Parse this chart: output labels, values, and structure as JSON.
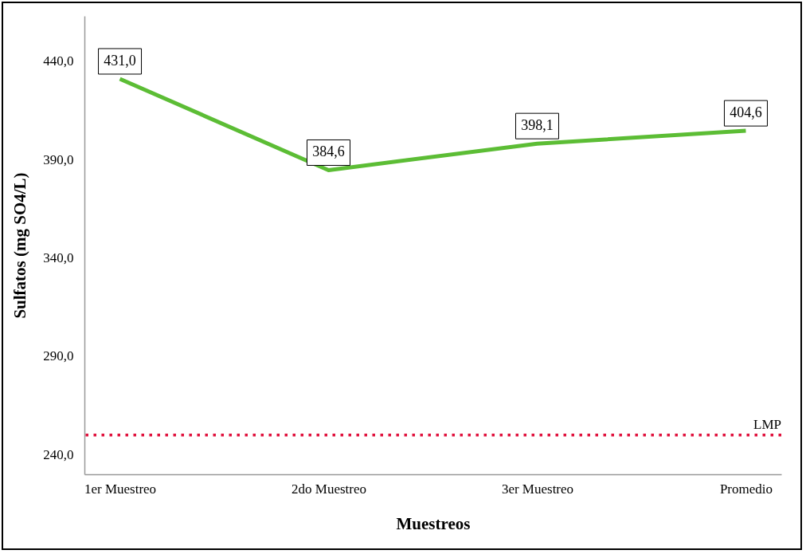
{
  "chart_data": {
    "type": "line",
    "xlabel": "Muestreos",
    "ylabel": "Sulfatos (mg SO4/L)",
    "categories": [
      "1er Muestreo",
      "2do Muestreo",
      "3er Muestreo",
      "Promedio"
    ],
    "values": [
      431.0,
      384.6,
      398.1,
      404.6
    ],
    "value_labels": [
      "431,0",
      "384,6",
      "398,1",
      "404,6"
    ],
    "color": "#5cbd35",
    "ylim": [
      230,
      463
    ],
    "yticks": [
      {
        "value": 240,
        "label": "240,0"
      },
      {
        "value": 290,
        "label": "290,0"
      },
      {
        "value": 340,
        "label": "340,0"
      },
      {
        "value": 390,
        "label": "390,0"
      },
      {
        "value": 440,
        "label": "440,0"
      }
    ],
    "grid": false,
    "line_style": "solid",
    "ref_lines": [
      {
        "axis": "y",
        "value": 250,
        "label": "LMP",
        "color": "#e0103c",
        "line_style": "dotted"
      }
    ]
  }
}
